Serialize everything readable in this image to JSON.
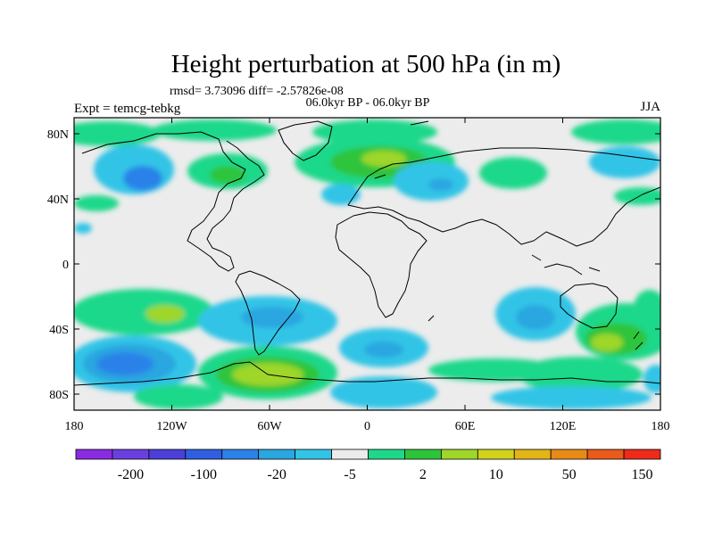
{
  "map": {
    "title": "Height perturbation at 500 hPa (in m)",
    "stats": "rmsd= 3.73096 diff= -2.57826e-08",
    "period": "06.0kyr BP - 06.0kyr BP",
    "expt": "Expt = temcg-tebkg",
    "season": "JJA",
    "lat_ticks": [
      "80N",
      "40N",
      "0",
      "40S",
      "80S"
    ],
    "lon_ticks": [
      "180",
      "120W",
      "60W",
      "0",
      "60E",
      "120E",
      "180"
    ]
  },
  "colorbar": {
    "colors": [
      "#8a2be2",
      "#6a3fe0",
      "#4b3fd8",
      "#2f5fe0",
      "#2b82e8",
      "#2aa6e0",
      "#31c4e6",
      "#ececec",
      "#1ed88a",
      "#2ec43a",
      "#9ed62a",
      "#d2d21a",
      "#e2b416",
      "#e88a18",
      "#ea5a1a",
      "#ee2a1a"
    ],
    "labels": [
      "-200",
      "-100",
      "-20",
      "-5",
      "2",
      "10",
      "50",
      "150"
    ]
  },
  "palette": {
    "background": "#ececec",
    "light_blue": "#31c4e6",
    "mid_blue": "#2aa6e0",
    "blue": "#2b82e8",
    "teal": "#1ed88a",
    "green": "#2ec43a",
    "yellow_green": "#9ed62a",
    "yellow": "#d2d21a",
    "coast": "#000000"
  }
}
